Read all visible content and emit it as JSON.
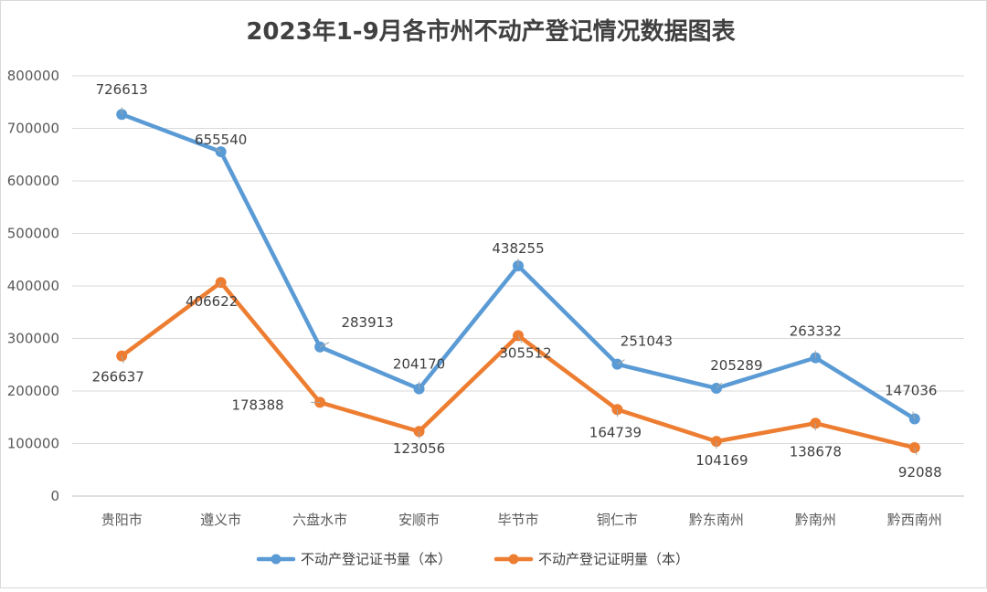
{
  "chart_data": {
    "type": "line",
    "title": "2023年1-9月各市州不动产登记情况数据图表",
    "categories": [
      "贵阳市",
      "遵义市",
      "六盘水市",
      "安顺市",
      "毕节市",
      "铜仁市",
      "黔东南州",
      "黔南州",
      "黔西南州"
    ],
    "ylim": [
      0,
      800000
    ],
    "yticks": [
      "0",
      "100000",
      "200000",
      "300000",
      "400000",
      "500000",
      "600000",
      "700000",
      "800000"
    ],
    "grid": true,
    "legend_position": "bottom",
    "series": [
      {
        "name": "不动产登记证书量（本）",
        "color": "#5b9bd5",
        "values": [
          726613,
          655540,
          283913,
          204170,
          438255,
          251043,
          205289,
          263332,
          147036
        ],
        "labels": [
          "726613",
          "655540",
          "283913",
          "204170",
          "438255",
          "251043",
          "205289",
          "263332",
          "147036"
        ]
      },
      {
        "name": "不动产登记证明量（本）",
        "color": "#ed7d31",
        "values": [
          266637,
          406622,
          178388,
          123056,
          305512,
          164739,
          104169,
          138678,
          92088
        ],
        "labels": [
          "266637",
          "406622",
          "178388",
          "123056",
          "305512",
          "164739",
          "104169",
          "138678",
          "92088"
        ]
      }
    ]
  }
}
